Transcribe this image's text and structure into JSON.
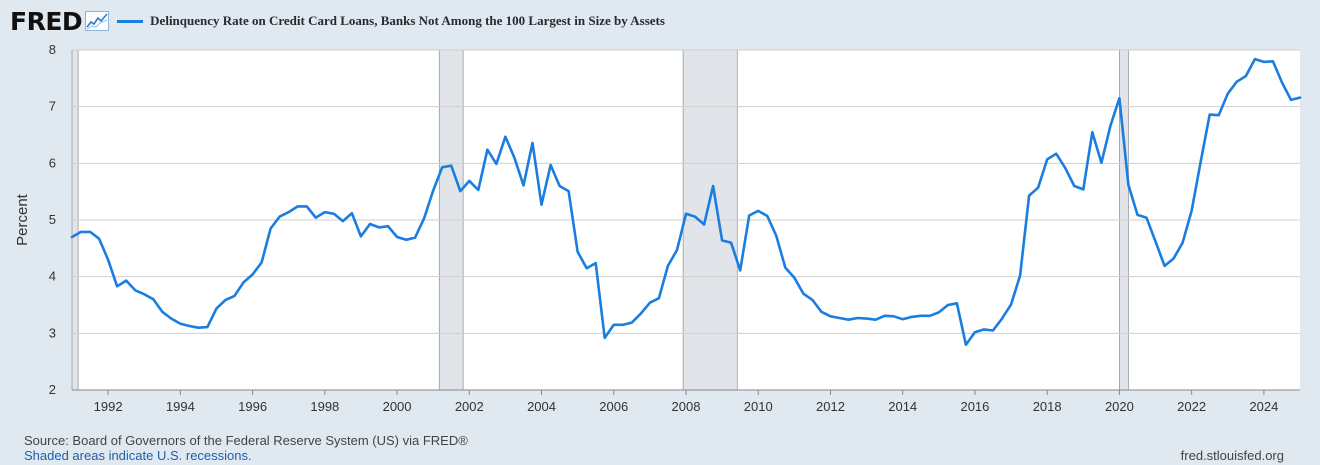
{
  "header": {
    "logo": "FRED",
    "title": "Delinquency Rate on Credit Card Loans, Banks Not Among the 100 Largest in Size by Assets"
  },
  "footer": {
    "source": "Source: Board of Governors of the Federal Reserve System (US) via FRED®",
    "recession_note": "Shaded areas indicate U.S. recessions.",
    "url": "fred.stlouisfed.org"
  },
  "colors": {
    "line": "#1a7de0",
    "recession": "#e1e5e9",
    "plot_background": "#ffffff",
    "grid": "#cfcfcf"
  },
  "chart_data": {
    "type": "line",
    "title": "Delinquency Rate on Credit Card Loans, Banks Not Among the 100 Largest in Size by Assets",
    "xlabel": "",
    "ylabel": "Percent",
    "xlim": [
      1991.0,
      2025.0
    ],
    "ylim": [
      2,
      8
    ],
    "yticks": [
      2,
      3,
      4,
      5,
      6,
      7,
      8
    ],
    "xticks": [
      "1992",
      "1994",
      "1996",
      "1998",
      "2000",
      "2002",
      "2004",
      "2006",
      "2008",
      "2010",
      "2012",
      "2014",
      "2016",
      "2018",
      "2020",
      "2022",
      "2024"
    ],
    "grid": true,
    "legend": "top-left",
    "recessions": [
      [
        1991.0,
        1991.17
      ],
      [
        2001.17,
        2001.83
      ],
      [
        2007.92,
        2009.42
      ],
      [
        2020.0,
        2020.25
      ]
    ],
    "series": [
      {
        "name": "Delinquency Rate on Credit Card Loans, Banks Not Among the 100 Largest in Size by Assets",
        "x": [
          1991.0,
          1991.25,
          1991.5,
          1991.75,
          1992.0,
          1992.25,
          1992.5,
          1992.75,
          1993.0,
          1993.25,
          1993.5,
          1993.75,
          1994.0,
          1994.25,
          1994.5,
          1994.75,
          1995.0,
          1995.25,
          1995.5,
          1995.75,
          1996.0,
          1996.25,
          1996.5,
          1996.75,
          1997.0,
          1997.25,
          1997.5,
          1997.75,
          1998.0,
          1998.25,
          1998.5,
          1998.75,
          1999.0,
          1999.25,
          1999.5,
          1999.75,
          2000.0,
          2000.25,
          2000.5,
          2000.75,
          2001.0,
          2001.25,
          2001.5,
          2001.75,
          2002.0,
          2002.25,
          2002.5,
          2002.75,
          2003.0,
          2003.25,
          2003.5,
          2003.75,
          2004.0,
          2004.25,
          2004.5,
          2004.75,
          2005.0,
          2005.25,
          2005.5,
          2005.75,
          2006.0,
          2006.25,
          2006.5,
          2006.75,
          2007.0,
          2007.25,
          2007.5,
          2007.75,
          2008.0,
          2008.25,
          2008.5,
          2008.75,
          2009.0,
          2009.25,
          2009.5,
          2009.75,
          2010.0,
          2010.25,
          2010.5,
          2010.75,
          2011.0,
          2011.25,
          2011.5,
          2011.75,
          2012.0,
          2012.25,
          2012.5,
          2012.75,
          2013.0,
          2013.25,
          2013.5,
          2013.75,
          2014.0,
          2014.25,
          2014.5,
          2014.75,
          2015.0,
          2015.25,
          2015.5,
          2015.75,
          2016.0,
          2016.25,
          2016.5,
          2016.75,
          2017.0,
          2017.25,
          2017.5,
          2017.75,
          2018.0,
          2018.25,
          2018.5,
          2018.75,
          2019.0,
          2019.25,
          2019.5,
          2019.75,
          2020.0,
          2020.25,
          2020.5,
          2020.75,
          2021.0,
          2021.25,
          2021.5,
          2021.75,
          2022.0,
          2022.25,
          2022.5,
          2022.75,
          2023.0,
          2023.25,
          2023.5,
          2023.75,
          2024.0,
          2024.25,
          2024.5,
          2024.75,
          2025.0
        ],
        "values": [
          4.7,
          4.79,
          4.79,
          4.67,
          4.3,
          3.83,
          3.93,
          3.76,
          3.69,
          3.6,
          3.38,
          3.26,
          3.17,
          3.13,
          3.1,
          3.11,
          3.44,
          3.59,
          3.66,
          3.9,
          4.04,
          4.25,
          4.85,
          5.06,
          5.14,
          5.24,
          5.24,
          5.04,
          5.14,
          5.11,
          4.98,
          5.12,
          4.71,
          4.93,
          4.87,
          4.89,
          4.7,
          4.65,
          4.69,
          5.03,
          5.52,
          5.93,
          5.96,
          5.51,
          5.69,
          5.53,
          6.24,
          5.99,
          6.47,
          6.1,
          5.61,
          6.36,
          5.27,
          5.97,
          5.6,
          5.51,
          4.44,
          4.15,
          4.24,
          2.92,
          3.15,
          3.15,
          3.19,
          3.35,
          3.54,
          3.62,
          4.19,
          4.47,
          5.11,
          5.06,
          4.92,
          5.6,
          4.64,
          4.6,
          4.11,
          5.08,
          5.16,
          5.07,
          4.72,
          4.16,
          3.98,
          3.7,
          3.59,
          3.38,
          3.3,
          3.27,
          3.24,
          3.27,
          3.26,
          3.24,
          3.31,
          3.3,
          3.25,
          3.29,
          3.31,
          3.31,
          3.37,
          3.5,
          3.53,
          2.8,
          3.02,
          3.07,
          3.05,
          3.26,
          3.51,
          4.02,
          5.43,
          5.57,
          6.07,
          6.17,
          5.92,
          5.6,
          5.54,
          6.55,
          6.01,
          6.66,
          7.15,
          5.62,
          5.09,
          5.04,
          4.62,
          4.19,
          4.32,
          4.6,
          5.16,
          6.03,
          6.86,
          6.85,
          7.23,
          7.44,
          7.54,
          7.84,
          7.79,
          7.8,
          7.43,
          7.12,
          7.16
        ]
      }
    ]
  }
}
